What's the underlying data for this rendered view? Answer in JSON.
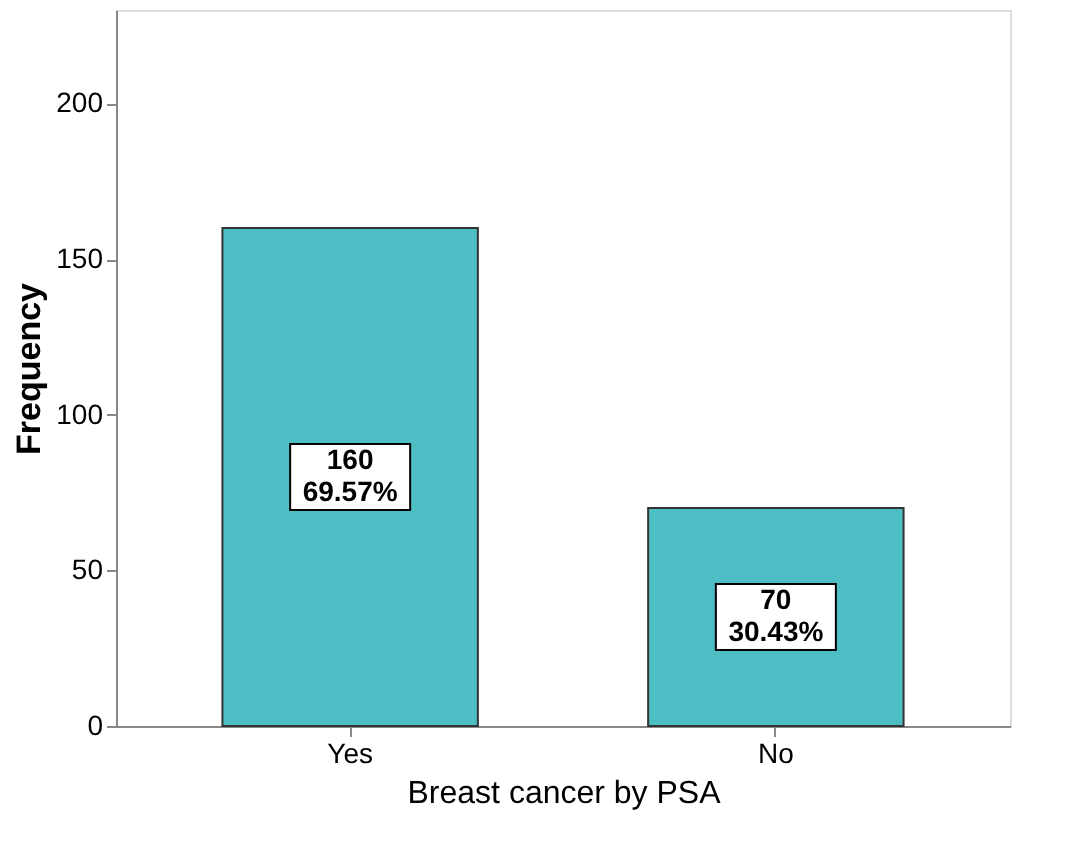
{
  "chart_data": {
    "type": "bar",
    "xlabel": "Breast cancer by PSA",
    "ylabel": "Frequency",
    "categories": [
      "Yes",
      "No"
    ],
    "values": [
      160,
      70
    ],
    "value_labels": [
      "160\n69.57%",
      "70\n30.43%"
    ],
    "color": "#4dbfc4",
    "ylim": [
      0,
      230
    ],
    "yticks": [
      0,
      50,
      100,
      150,
      200
    ],
    "grid": false
  }
}
